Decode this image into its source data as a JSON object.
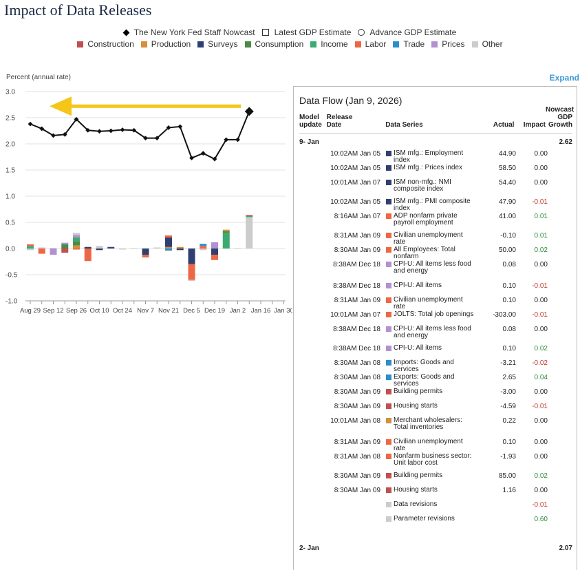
{
  "page": {
    "title": "Impact of Data Releases"
  },
  "legend": {
    "markers": [
      {
        "label": "The New York Fed Staff Nowcast",
        "shape": "diamond"
      },
      {
        "label": "Latest GDP Estimate",
        "shape": "square"
      },
      {
        "label": "Advance GDP Estimate",
        "shape": "circle"
      }
    ],
    "categories": [
      {
        "label": "Construction",
        "color": "#c0504d"
      },
      {
        "label": "Production",
        "color": "#d4903a"
      },
      {
        "label": "Surveys",
        "color": "#2f3f72"
      },
      {
        "label": "Consumption",
        "color": "#4b8b45"
      },
      {
        "label": "Income",
        "color": "#3aaa70"
      },
      {
        "label": "Labor",
        "color": "#ee6744"
      },
      {
        "label": "Trade",
        "color": "#2b8fcc"
      },
      {
        "label": "Prices",
        "color": "#b490d0"
      },
      {
        "label": "Other",
        "color": "#cccccc"
      }
    ]
  },
  "chart_data": {
    "type": "line",
    "ylabel": "Percent (annual rate)",
    "ylim": [
      -1.0,
      3.0
    ],
    "yticks": [
      "3.0",
      "2.5",
      "2.0",
      "1.5",
      "1.0",
      "0.5",
      "0.0",
      "-0.5",
      "-1.0"
    ],
    "xtick_labels": [
      "Aug 29",
      "Sep 12",
      "Sep 26",
      "Oct 10",
      "Oct 24",
      "Nov 7",
      "Nov 21",
      "Dec 5",
      "Dec 19",
      "Jan 2",
      "Jan 16",
      "Jan 30"
    ],
    "week_count": 23,
    "nowcast": {
      "name": "The New York Fed Staff Nowcast",
      "values": [
        2.38,
        2.29,
        2.16,
        2.18,
        2.47,
        2.26,
        2.24,
        2.25,
        2.27,
        2.26,
        2.11,
        2.11,
        2.31,
        2.33,
        1.73,
        1.82,
        1.71,
        2.08,
        2.08,
        2.62
      ]
    },
    "annotation": {
      "type": "arrow",
      "color": "#f5c518",
      "direction": "left"
    },
    "impact_bars": [
      [
        [
          "Income",
          0.05
        ],
        [
          "Labor",
          0.03
        ],
        [
          "Other",
          -0.03
        ]
      ],
      [
        [
          "Labor",
          -0.1
        ],
        [
          "Other",
          0.02
        ]
      ],
      [
        [
          "Prices",
          -0.12
        ],
        [
          "Other",
          0.01
        ]
      ],
      [
        [
          "Consumption",
          0.08
        ],
        [
          "Prices",
          0.03
        ],
        [
          "Construction",
          -0.08
        ]
      ],
      [
        [
          "Production",
          0.06
        ],
        [
          "Consumption",
          0.08
        ],
        [
          "Income",
          0.07
        ],
        [
          "Prices",
          0.05
        ],
        [
          "Other",
          0.04
        ],
        [
          "Labor",
          -0.02
        ]
      ],
      [
        [
          "Surveys",
          0.03
        ],
        [
          "Labor",
          -0.24
        ]
      ],
      [
        [
          "Other",
          0.05
        ],
        [
          "Surveys",
          -0.03
        ]
      ],
      [
        [
          "Surveys",
          0.03
        ]
      ],
      [
        [
          "Other",
          -0.02
        ]
      ],
      [
        [
          "Other",
          0.01
        ]
      ],
      [
        [
          "Surveys",
          -0.12
        ],
        [
          "Labor",
          -0.05
        ]
      ],
      [
        [
          "Other",
          0.02
        ]
      ],
      [
        [
          "Production",
          0.03
        ],
        [
          "Surveys",
          0.18
        ],
        [
          "Labor",
          0.04
        ],
        [
          "Trade",
          -0.04
        ]
      ],
      [
        [
          "Production",
          0.03
        ],
        [
          "Surveys",
          -0.03
        ]
      ],
      [
        [
          "Surveys",
          -0.3
        ],
        [
          "Labor",
          -0.3
        ],
        [
          "Other",
          -0.02
        ]
      ],
      [
        [
          "Labor",
          0.05
        ],
        [
          "Trade",
          0.04
        ],
        [
          "Other",
          -0.03
        ]
      ],
      [
        [
          "Prices",
          0.12
        ],
        [
          "Surveys",
          -0.12
        ],
        [
          "Labor",
          -0.1
        ]
      ],
      [
        [
          "Income",
          0.3
        ],
        [
          "Consumption",
          0.03
        ],
        [
          "Production",
          0.03
        ]
      ],
      [
        [
          "Other",
          -0.01
        ]
      ],
      [
        [
          "Other",
          0.6
        ],
        [
          "Income",
          0.02
        ],
        [
          "Construction",
          0.02
        ]
      ]
    ]
  },
  "expand_label": "Expand",
  "panel": {
    "title": "Data Flow (Jan 9, 2026)",
    "headers": {
      "model_update": "Model update",
      "release_date": "Release Date",
      "data_series": "Data Series",
      "actual": "Actual",
      "impact": "Impact",
      "nowcast_growth": "Nowcast GDP Growth"
    },
    "groups": [
      {
        "label": "9- Jan",
        "growth": "2.62"
      },
      {
        "label": "2- Jan",
        "growth": "2.07"
      }
    ],
    "rows": [
      {
        "date": "10:02AM Jan 05",
        "series": "ISM mfg.: Employment index",
        "category": "Surveys",
        "actual": "44.90",
        "impact": "0.00",
        "sign": "neu"
      },
      {
        "date": "10:02AM Jan 05",
        "series": "ISM mfg.: Prices index",
        "category": "Surveys",
        "actual": "58.50",
        "impact": "0.00",
        "sign": "neu"
      },
      {
        "date": "10:01AM Jan 07",
        "series": "ISM non-mfg.: NMI composite index",
        "category": "Surveys",
        "actual": "54.40",
        "impact": "0.00",
        "sign": "neu"
      },
      {
        "date": "10:02AM Jan 05",
        "series": "ISM mfg.: PMI composite index",
        "category": "Surveys",
        "actual": "47.90",
        "impact": "-0.01",
        "sign": "neg"
      },
      {
        "date": "8:16AM Jan 07",
        "series": "ADP nonfarm private payroll employment",
        "category": "Labor",
        "actual": "41.00",
        "impact": "0.01",
        "sign": "pos"
      },
      {
        "date": "8:31AM Jan 09",
        "series": "Civilian unemployment rate",
        "category": "Labor",
        "actual": "-0.10",
        "impact": "0.01",
        "sign": "pos"
      },
      {
        "date": "8:30AM Jan 09",
        "series": "All Employees: Total nonfarm",
        "category": "Labor",
        "actual": "50.00",
        "impact": "0.02",
        "sign": "pos"
      },
      {
        "date": "8:38AM Dec 18",
        "series": "CPI-U: All items less food and energy",
        "category": "Prices",
        "actual": "0.08",
        "impact": "0.00",
        "sign": "neu"
      },
      {
        "date": "8:38AM Dec 18",
        "series": "CPI-U: All items",
        "category": "Prices",
        "actual": "0.10",
        "impact": "-0.01",
        "sign": "neg"
      },
      {
        "date": "8:31AM Jan 09",
        "series": "Civilian unemployment rate",
        "category": "Labor",
        "actual": "0.10",
        "impact": "0.00",
        "sign": "neu"
      },
      {
        "date": "10:01AM Jan 07",
        "series": "JOLTS: Total job openings",
        "category": "Labor",
        "actual": "-303.00",
        "impact": "-0.01",
        "sign": "neg"
      },
      {
        "date": "8:38AM Dec 18",
        "series": "CPI-U: All items less food and energy",
        "category": "Prices",
        "actual": "0.08",
        "impact": "0.00",
        "sign": "neu"
      },
      {
        "date": "8:38AM Dec 18",
        "series": "CPI-U: All items",
        "category": "Prices",
        "actual": "0.10",
        "impact": "0.02",
        "sign": "pos"
      },
      {
        "date": "8:30AM Jan 08",
        "series": "Imports: Goods and services",
        "category": "Trade",
        "actual": "-3.21",
        "impact": "-0.02",
        "sign": "neg"
      },
      {
        "date": "8:30AM Jan 08",
        "series": "Exports: Goods and services",
        "category": "Trade",
        "actual": "2.65",
        "impact": "0.04",
        "sign": "pos"
      },
      {
        "date": "8:30AM Jan 09",
        "series": "Building permits",
        "category": "Construction",
        "actual": "-3.00",
        "impact": "0.00",
        "sign": "neu"
      },
      {
        "date": "8:30AM Jan 09",
        "series": "Housing starts",
        "category": "Construction",
        "actual": "-4.59",
        "impact": "-0.01",
        "sign": "neg"
      },
      {
        "date": "10:01AM Jan 08",
        "series": "Merchant wholesalers: Total inventories",
        "category": "Production",
        "actual": "0.22",
        "impact": "0.00",
        "sign": "neu"
      },
      {
        "date": "8:31AM Jan 09",
        "series": "Civilian unemployment rate",
        "category": "Labor",
        "actual": "0.10",
        "impact": "0.00",
        "sign": "neu"
      },
      {
        "date": "8:31AM Jan 08",
        "series": "Nonfarm business sector: Unit labor cost",
        "category": "Labor",
        "actual": "-1.93",
        "impact": "0.00",
        "sign": "neu"
      },
      {
        "date": "8:30AM Jan 09",
        "series": "Building permits",
        "category": "Construction",
        "actual": "85.00",
        "impact": "0.02",
        "sign": "pos"
      },
      {
        "date": "8:30AM Jan 09",
        "series": "Housing starts",
        "category": "Construction",
        "actual": "1.16",
        "impact": "0.00",
        "sign": "neu"
      },
      {
        "date": "",
        "series": "Data revisions",
        "category": "Other",
        "actual": "",
        "impact": "-0.01",
        "sign": "neg"
      },
      {
        "date": "",
        "series": "Parameter revisions",
        "category": "Other",
        "actual": "",
        "impact": "0.60",
        "sign": "pos"
      }
    ]
  }
}
